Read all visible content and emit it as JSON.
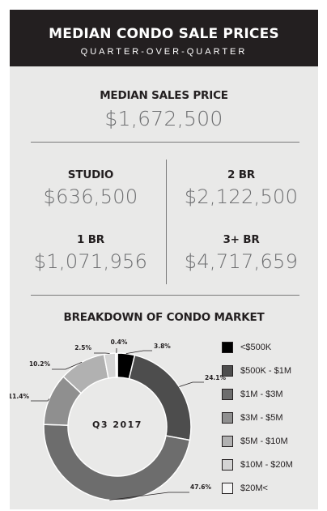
{
  "header": {
    "title": "MEDIAN CONDO SALE PRICES",
    "subtitle": "QUARTER-OVER-QUARTER"
  },
  "median": {
    "label": "MEDIAN SALES PRICE",
    "value": "$1,672,500"
  },
  "units": [
    {
      "label": "STUDIO",
      "value": "$636,500"
    },
    {
      "label": "2 BR",
      "value": "$2,122,500"
    },
    {
      "label": "1 BR",
      "value": "$1,071,956"
    },
    {
      "label": "3+ BR",
      "value": "$4,717,659"
    }
  ],
  "breakdown_title": "BREAKDOWN OF CONDO MARKET",
  "center_label": "Q3 2017",
  "chart_data": {
    "type": "pie",
    "title": "BREAKDOWN OF CONDO MARKET",
    "center_label": "Q3 2017",
    "series": [
      {
        "name": "<$500K",
        "value": 3.8,
        "label": "3.8%",
        "color": "#000000"
      },
      {
        "name": "$500K - $1M",
        "value": 24.1,
        "label": "24.1%",
        "color": "#4d4d4d"
      },
      {
        "name": "$1M - $3M",
        "value": 47.6,
        "label": "47.6%",
        "color": "#6d6d6d"
      },
      {
        "name": "$3M - $5M",
        "value": 11.4,
        "label": "11.4%",
        "color": "#8f8f8f"
      },
      {
        "name": "$5M - $10M",
        "value": 10.2,
        "label": "10.2%",
        "color": "#b1b1b1"
      },
      {
        "name": "$10M - $20M",
        "value": 2.5,
        "label": "2.5%",
        "color": "#d4d4d4"
      },
      {
        "name": "$20M<",
        "value": 0.4,
        "label": "0.4%",
        "color": "#f4f4f4"
      }
    ],
    "legend_position": "right"
  }
}
